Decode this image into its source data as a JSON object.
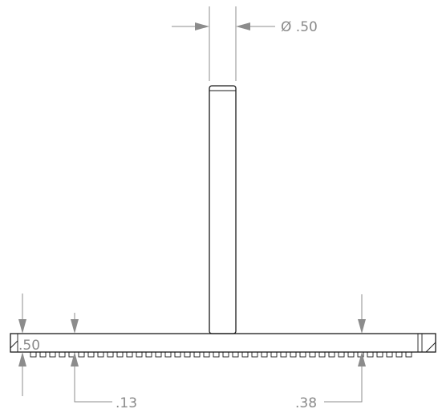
{
  "drawing": {
    "dimensions": {
      "shaft_diameter": {
        "symbol": "Ø",
        "value": ".50"
      },
      "base_height": {
        "value": ".50"
      },
      "dim_013": {
        "value": ".13"
      },
      "dim_038": {
        "value": ".38"
      }
    }
  }
}
